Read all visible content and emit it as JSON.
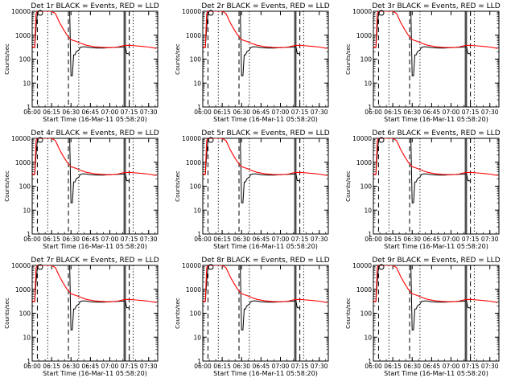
{
  "chart_data": {
    "type": "line",
    "y_scale": "log",
    "ylim": [
      1,
      10000
    ],
    "x_range": [
      "06:00",
      "07:37"
    ],
    "y_ticks": [
      "1",
      "10",
      "100",
      "1000",
      "10000"
    ],
    "x_ticks": [
      "06:00",
      "06:15",
      "06:30",
      "06:45",
      "07:00",
      "07:15",
      "07:30"
    ],
    "ylabel": "Counts/sec",
    "xlabel": "Start Time (16-Mar-11 05:58:20)",
    "series_colors": {
      "events": "#000000",
      "lld": "#ff0000"
    },
    "vertical_markers": [
      {
        "time": "06:04",
        "style": "dashed"
      },
      {
        "time": "06:12",
        "style": "dotted"
      },
      {
        "time": "06:28",
        "style": "dashed"
      },
      {
        "time": "06:36",
        "style": "dotted"
      },
      {
        "time": "07:11",
        "style": "solid"
      },
      {
        "time": "07:12",
        "style": "solid"
      },
      {
        "time": "07:15",
        "style": "dashed"
      },
      {
        "time": "07:18",
        "style": "dotted"
      }
    ],
    "panels": [
      {
        "title": "Det  1r BLACK = Events, RED = LLD"
      },
      {
        "title": "Det  2r BLACK = Events, RED = LLD"
      },
      {
        "title": "Det  3r BLACK = Events, RED = LLD"
      },
      {
        "title": "Det  4r BLACK = Events, RED = LLD"
      },
      {
        "title": "Det  5r BLACK = Events, RED = LLD"
      },
      {
        "title": "Det  6r BLACK = Events, RED = LLD"
      },
      {
        "title": "Det  7r BLACK = Events, RED = LLD"
      },
      {
        "title": "Det  8r BLACK = Events, RED = LLD"
      },
      {
        "title": "Det  9r BLACK = Events, RED = LLD"
      }
    ],
    "lld_series": {
      "x": [
        "06:00",
        "06:01",
        "06:02",
        "06:03",
        "06:04",
        "06:05",
        "06:07",
        "06:09",
        "06:10",
        "06:12",
        "06:15",
        "06:18",
        "06:21",
        "06:24",
        "06:27",
        "06:30",
        "06:34",
        "06:38",
        "06:42",
        "06:48",
        "06:54",
        "07:00",
        "07:06",
        "07:11",
        "07:15",
        "07:20",
        "07:25",
        "07:30",
        "07:36"
      ],
      "y": [
        350,
        300,
        320,
        8000,
        12000,
        12000,
        12000,
        12000,
        12000,
        12000,
        12000,
        8000,
        3500,
        1800,
        1000,
        650,
        550,
        450,
        380,
        330,
        310,
        300,
        320,
        370,
        380,
        360,
        340,
        320,
        280
      ]
    },
    "events_series": {
      "x": [
        "06:00",
        "06:01",
        "06:02",
        "06:03",
        "06:04",
        "06:05",
        "06:06",
        "06:07",
        "06:08",
        "06:10",
        "06:29",
        "06:30",
        "06:31",
        "06:32",
        "06:33",
        "06:34",
        "06:35",
        "06:36",
        "06:37",
        "06:38",
        "06:40",
        "06:42",
        "06:45",
        "06:50",
        "06:55",
        "07:00",
        "07:05",
        "07:10",
        "07:12",
        "07:13",
        "07:14",
        "07:15"
      ],
      "y": [
        320,
        300,
        310,
        2000,
        8000,
        10000,
        10000,
        10000,
        10000,
        10000,
        10000,
        20,
        20,
        150,
        150,
        200,
        220,
        240,
        300,
        320,
        330,
        320,
        300,
        290,
        290,
        300,
        310,
        320,
        330,
        170,
        170,
        160
      ]
    }
  }
}
